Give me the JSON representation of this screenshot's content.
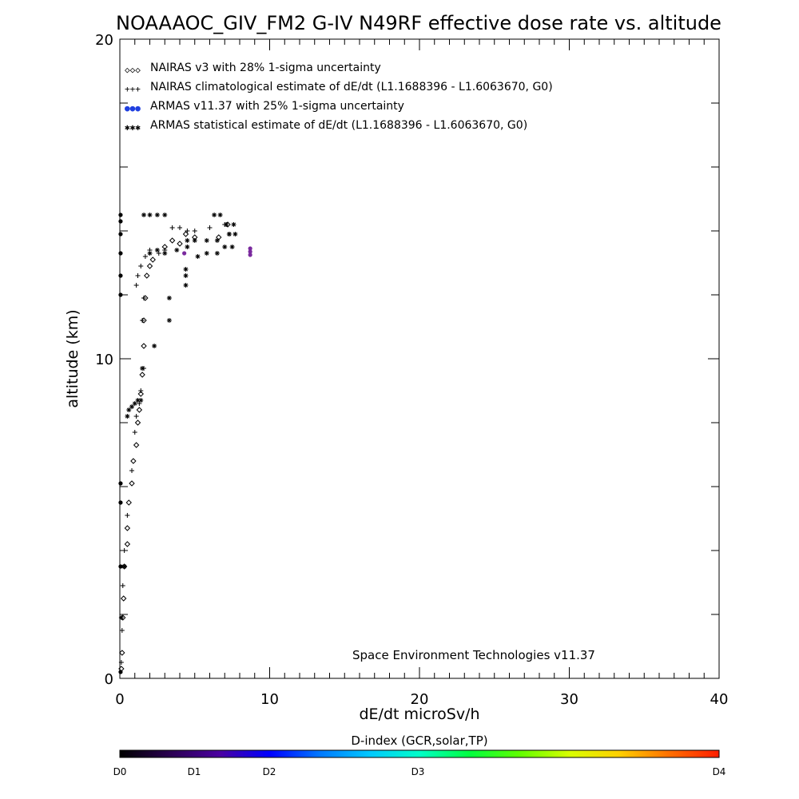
{
  "chart_data": {
    "type": "scatter",
    "title": "NOAAAOC_GIV_FM2 G-IV   N49RF  effective dose rate vs. altitude",
    "xlabel": "dE/dt microSv/h",
    "ylabel": "altitude (km)",
    "xlim": [
      0,
      40
    ],
    "ylim": [
      0,
      20
    ],
    "x_ticks": [
      "0",
      "10",
      "20",
      "30",
      "40"
    ],
    "y_ticks": [
      "0",
      "10",
      "20"
    ],
    "grid": false,
    "legend_placement": "top-left",
    "credit": "Space Environment Technologies v11.37",
    "colorbar": {
      "title": "D-index (GCR,solar,TP)",
      "labels": [
        {
          "text": "D0",
          "value": 0
        },
        {
          "text": "D1",
          "value": 1
        },
        {
          "text": "D2",
          "value": 2
        },
        {
          "text": "D3",
          "value": 3
        },
        {
          "text": "D4",
          "value": 4
        }
      ],
      "colors": [
        "#000000",
        "#2a0050",
        "#4b00a0",
        "#0000ff",
        "#0078ff",
        "#00c8ff",
        "#00ffc8",
        "#00ff40",
        "#60ff00",
        "#d8ff00",
        "#ffd000",
        "#ff7000",
        "#ff1e00"
      ]
    },
    "series": [
      {
        "name": "NAIRAS v3 with 28% 1-sigma uncertainty",
        "marker": "diamond",
        "symbol": "◇",
        "legend_symbol": "◇◇◇",
        "color": "#000000",
        "points": [
          [
            0.1,
            0.3
          ],
          [
            0.15,
            0.8
          ],
          [
            0.2,
            1.9
          ],
          [
            0.25,
            2.5
          ],
          [
            0.3,
            3.5
          ],
          [
            0.5,
            4.2
          ],
          [
            0.5,
            4.7
          ],
          [
            0.6,
            5.5
          ],
          [
            0.8,
            6.1
          ],
          [
            0.9,
            6.8
          ],
          [
            1.1,
            7.3
          ],
          [
            1.2,
            8.0
          ],
          [
            1.3,
            8.4
          ],
          [
            1.4,
            8.9
          ],
          [
            1.5,
            9.5
          ],
          [
            1.6,
            10.4
          ],
          [
            1.6,
            11.2
          ],
          [
            1.7,
            11.9
          ],
          [
            1.8,
            12.6
          ],
          [
            2.0,
            12.9
          ],
          [
            2.2,
            13.1
          ],
          [
            3.0,
            13.5
          ],
          [
            3.5,
            13.7
          ],
          [
            4.0,
            13.6
          ],
          [
            4.4,
            13.9
          ],
          [
            5.0,
            13.8
          ],
          [
            6.6,
            13.8
          ],
          [
            7.2,
            14.2
          ]
        ]
      },
      {
        "name": "NAIRAS climatological estimate of dE/dt (L1.1688396 - L1.6063670, G0)",
        "marker": "plus",
        "symbol": "+",
        "legend_symbol": "+++",
        "color": "#000000",
        "points": [
          [
            0.1,
            0.5
          ],
          [
            0.15,
            1.5
          ],
          [
            0.2,
            2.9
          ],
          [
            0.3,
            4.0
          ],
          [
            0.5,
            5.1
          ],
          [
            0.8,
            6.5
          ],
          [
            1.0,
            7.7
          ],
          [
            1.1,
            8.2
          ],
          [
            1.3,
            8.6
          ],
          [
            1.4,
            9.0
          ],
          [
            1.6,
            9.7
          ],
          [
            1.5,
            11.2
          ],
          [
            1.6,
            11.9
          ],
          [
            1.1,
            12.3
          ],
          [
            1.2,
            12.6
          ],
          [
            1.4,
            12.9
          ],
          [
            1.7,
            13.2
          ],
          [
            2.0,
            13.4
          ],
          [
            2.6,
            13.3
          ],
          [
            3.0,
            13.4
          ],
          [
            3.5,
            14.1
          ],
          [
            4.0,
            14.1
          ],
          [
            4.5,
            14.0
          ],
          [
            5.0,
            14.0
          ],
          [
            6.0,
            14.1
          ],
          [
            7.0,
            14.2
          ]
        ]
      },
      {
        "name": "ARMAS v11.37 with 25% 1-sigma uncertainty",
        "marker": "dot",
        "symbol": "●",
        "legend_symbol": "●●●",
        "color": "#7a2a9e",
        "legend_color": "#2040e0",
        "points": [
          [
            0.05,
            0.2
          ],
          [
            0.05,
            3.5
          ],
          [
            0.05,
            5.5
          ],
          [
            0.05,
            6.1
          ],
          [
            0.05,
            12.0
          ],
          [
            0.05,
            12.6
          ],
          [
            0.05,
            13.3
          ],
          [
            0.05,
            13.9
          ],
          [
            0.05,
            14.3
          ],
          [
            0.05,
            14.5
          ],
          [
            4.3,
            13.3
          ],
          [
            8.7,
            13.25
          ],
          [
            8.7,
            13.35
          ],
          [
            8.7,
            13.45
          ]
        ]
      },
      {
        "name": "ARMAS statistical estimate of dE/dt (L1.1688396 - L1.6063670, G0)",
        "marker": "asterisk",
        "symbol": "✱",
        "legend_symbol": "✱✱✱",
        "color": "#000000",
        "points": [
          [
            0.1,
            1.9
          ],
          [
            0.3,
            3.5
          ],
          [
            0.5,
            8.2
          ],
          [
            0.6,
            8.4
          ],
          [
            0.8,
            8.5
          ],
          [
            1.0,
            8.6
          ],
          [
            1.2,
            8.7
          ],
          [
            1.4,
            8.7
          ],
          [
            1.5,
            9.7
          ],
          [
            2.3,
            10.4
          ],
          [
            3.3,
            11.2
          ],
          [
            3.3,
            11.9
          ],
          [
            4.4,
            12.3
          ],
          [
            4.4,
            12.6
          ],
          [
            4.4,
            12.8
          ],
          [
            2.0,
            13.3
          ],
          [
            2.5,
            13.4
          ],
          [
            3.0,
            13.3
          ],
          [
            3.8,
            13.4
          ],
          [
            4.5,
            13.5
          ],
          [
            5.2,
            13.2
          ],
          [
            5.8,
            13.3
          ],
          [
            6.5,
            13.3
          ],
          [
            7.0,
            13.5
          ],
          [
            7.5,
            13.5
          ],
          [
            4.5,
            13.7
          ],
          [
            5.0,
            13.7
          ],
          [
            5.8,
            13.7
          ],
          [
            6.5,
            13.7
          ],
          [
            7.3,
            13.9
          ],
          [
            7.7,
            13.9
          ],
          [
            1.6,
            14.5
          ],
          [
            2.0,
            14.5
          ],
          [
            2.5,
            14.5
          ],
          [
            3.0,
            14.5
          ],
          [
            6.3,
            14.5
          ],
          [
            6.7,
            14.5
          ],
          [
            7.1,
            14.2
          ],
          [
            7.6,
            14.2
          ],
          [
            7.3,
            13.9
          ]
        ]
      }
    ]
  }
}
